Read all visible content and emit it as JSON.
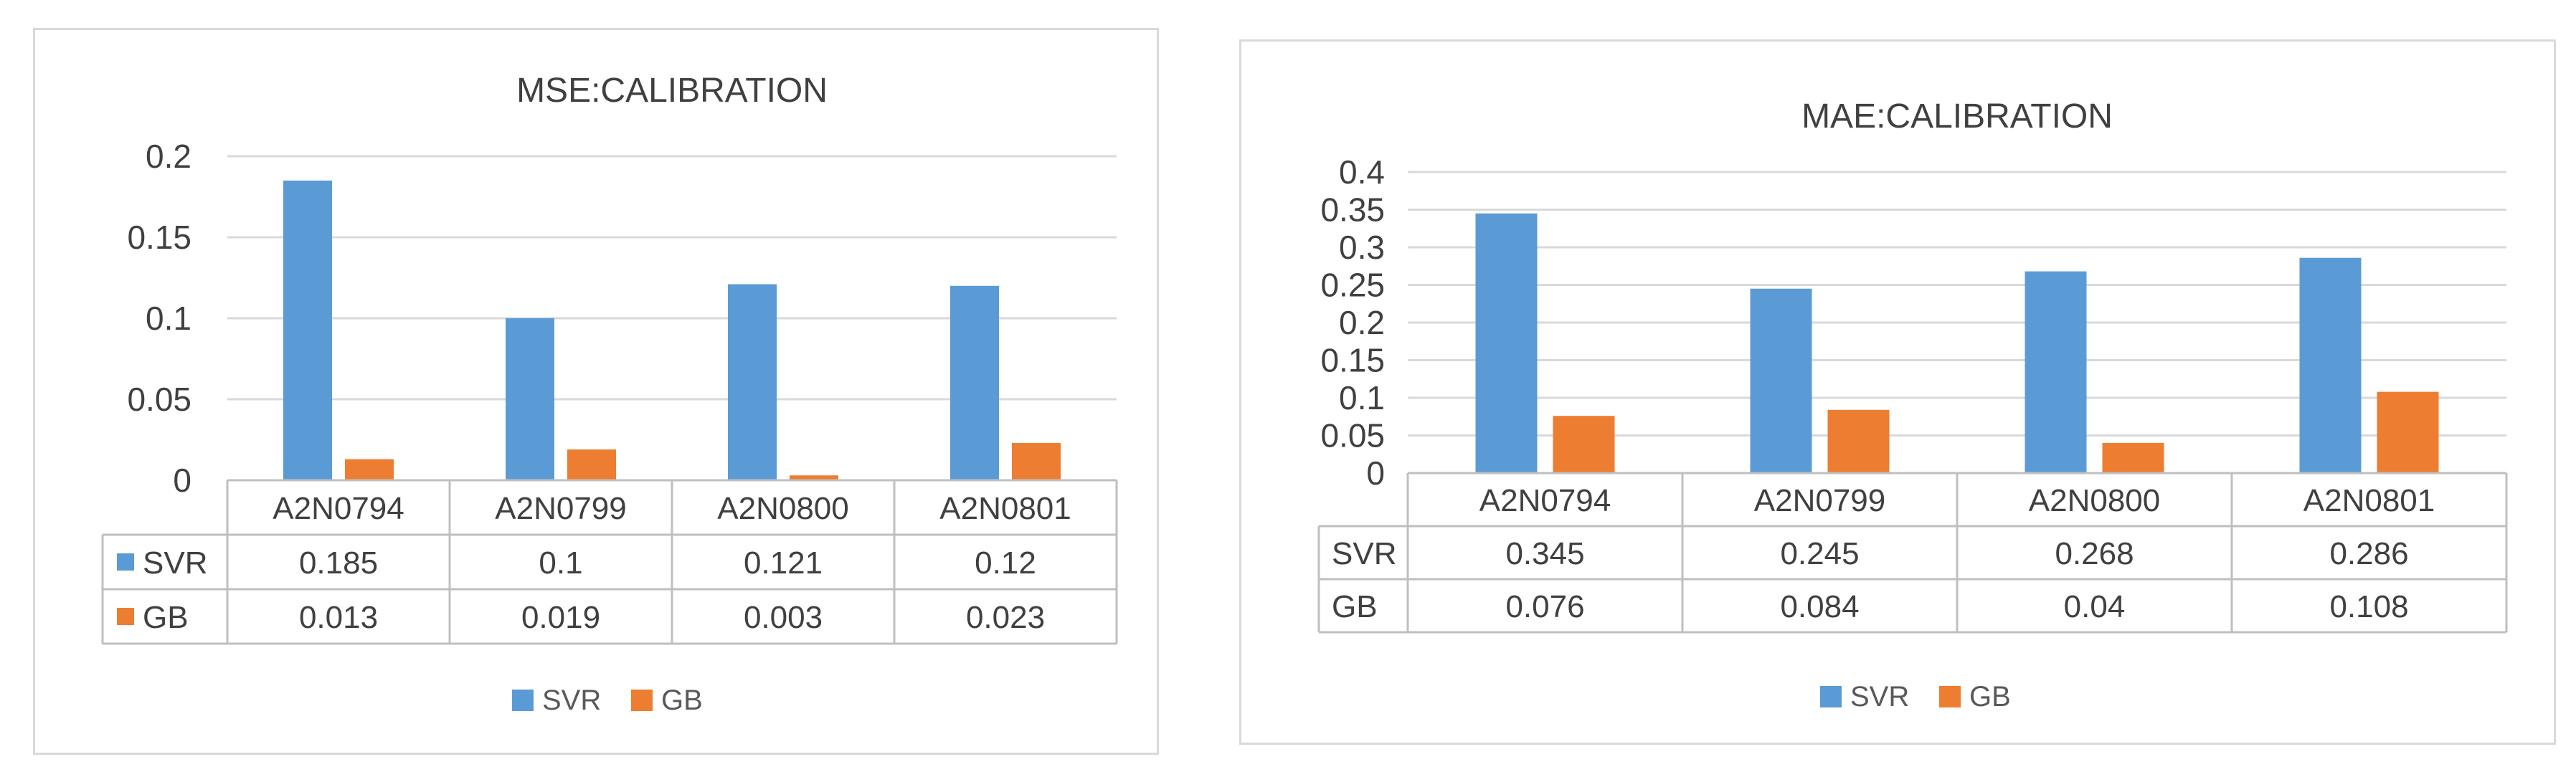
{
  "colors": {
    "SVR": "#5B9BD5",
    "GB": "#ED7D31"
  },
  "chart_data": [
    {
      "type": "bar",
      "title": "MSE:CALIBRATION",
      "categories": [
        "A2N0794",
        "A2N0799",
        "A2N0800",
        "A2N0801"
      ],
      "series": [
        {
          "name": "SVR",
          "values": [
            0.185,
            0.1,
            0.121,
            0.12
          ],
          "labels": [
            "0.185",
            "0.1",
            "0.121",
            "0.12"
          ]
        },
        {
          "name": "GB",
          "values": [
            0.013,
            0.019,
            0.003,
            0.023
          ],
          "labels": [
            "0.013",
            "0.019",
            "0.003",
            "0.023"
          ]
        }
      ],
      "ylim": [
        0,
        0.2
      ],
      "yticks": [
        "0",
        "0.05",
        "0.1",
        "0.15",
        "0.2"
      ],
      "grid": true,
      "data_table": true,
      "legend": "bottom"
    },
    {
      "type": "bar",
      "title": "MAE:CALIBRATION",
      "categories": [
        "A2N0794",
        "A2N0799",
        "A2N0800",
        "A2N0801"
      ],
      "series": [
        {
          "name": "SVR",
          "values": [
            0.345,
            0.245,
            0.268,
            0.286
          ],
          "labels": [
            "0.345",
            "0.245",
            "0.268",
            "0.286"
          ]
        },
        {
          "name": "GB",
          "values": [
            0.076,
            0.084,
            0.04,
            0.108
          ],
          "labels": [
            "0.076",
            "0.084",
            "0.04",
            "0.108"
          ]
        }
      ],
      "ylim": [
        0,
        0.4
      ],
      "yticks": [
        "0",
        "0.05",
        "0.1",
        "0.15",
        "0.2",
        "0.25",
        "0.3",
        "0.35",
        "0.4"
      ],
      "grid": true,
      "data_table": true,
      "legend": "bottom"
    }
  ]
}
